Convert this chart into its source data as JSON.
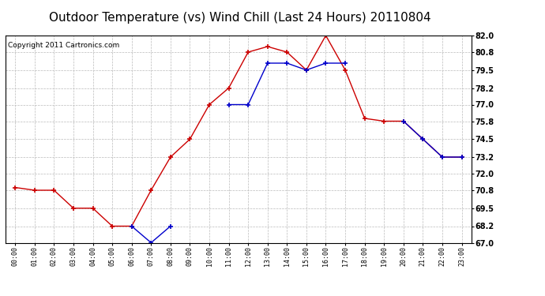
{
  "title": "Outdoor Temperature (vs) Wind Chill (Last 24 Hours) 20110804",
  "copyright": "Copyright 2011 Cartronics.com",
  "hours": [
    "00:00",
    "01:00",
    "02:00",
    "03:00",
    "04:00",
    "05:00",
    "06:00",
    "07:00",
    "08:00",
    "09:00",
    "10:00",
    "11:00",
    "12:00",
    "13:00",
    "14:00",
    "15:00",
    "16:00",
    "17:00",
    "18:00",
    "19:00",
    "20:00",
    "21:00",
    "22:00",
    "23:00"
  ],
  "temp": [
    71.0,
    70.8,
    70.8,
    69.5,
    69.5,
    68.2,
    68.2,
    70.8,
    73.2,
    74.5,
    77.0,
    78.2,
    80.8,
    81.2,
    80.8,
    79.5,
    82.0,
    79.5,
    76.0,
    75.8,
    75.8,
    74.5,
    73.2,
    73.2
  ],
  "windchill": [
    null,
    null,
    null,
    null,
    null,
    null,
    68.2,
    67.0,
    68.2,
    null,
    null,
    77.0,
    77.0,
    80.0,
    80.0,
    79.5,
    80.0,
    80.0,
    null,
    null,
    75.8,
    74.5,
    73.2,
    73.2
  ],
  "temp_color": "#cc0000",
  "windchill_color": "#0000cc",
  "ylim_min": 67.0,
  "ylim_max": 82.0,
  "yticks": [
    67.0,
    68.2,
    69.5,
    70.8,
    72.0,
    73.2,
    74.5,
    75.8,
    77.0,
    78.2,
    79.5,
    80.8,
    82.0
  ],
  "background_color": "#ffffff",
  "grid_color": "#bbbbbb",
  "title_fontsize": 11,
  "copyright_fontsize": 6.5,
  "tick_fontsize": 7,
  "xtick_fontsize": 6
}
